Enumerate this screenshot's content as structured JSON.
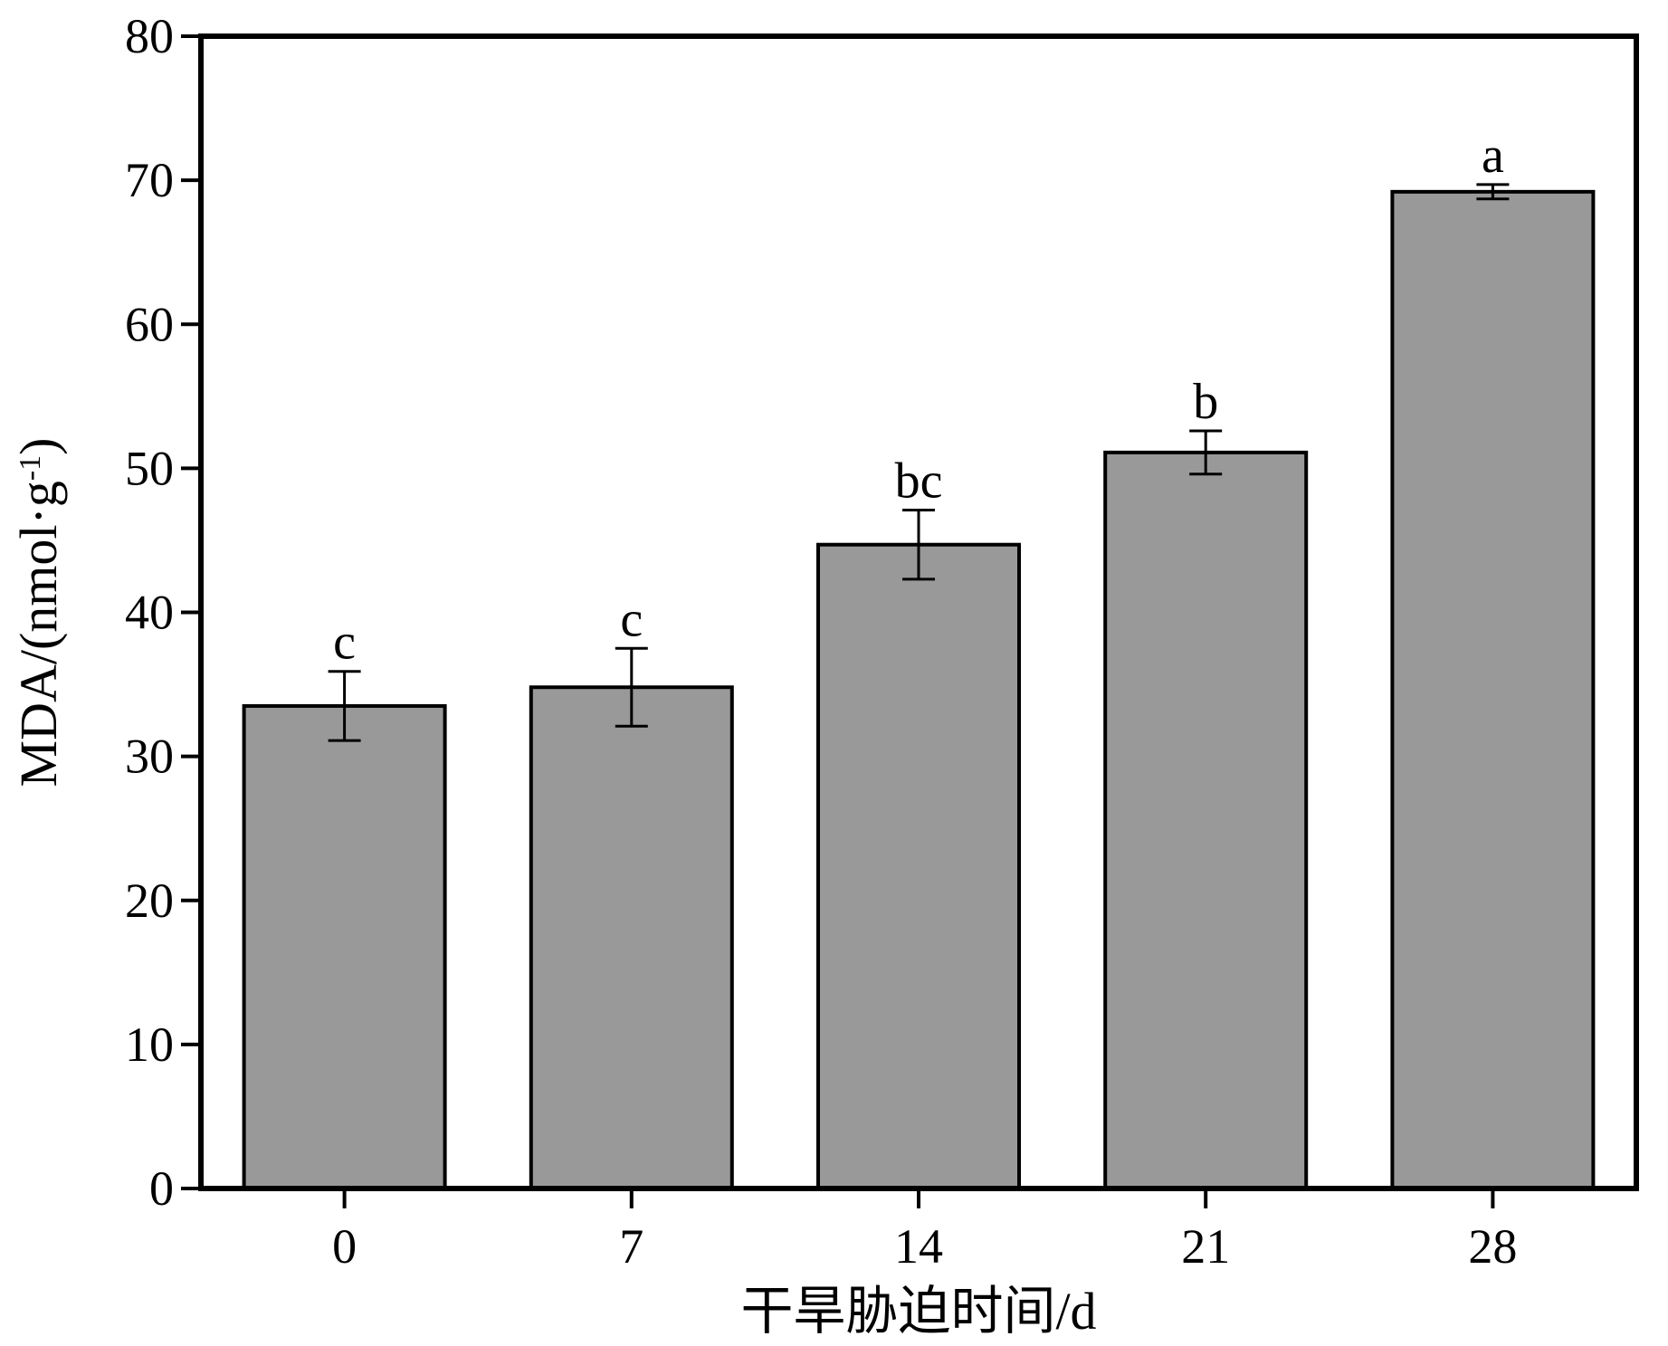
{
  "chart_data": {
    "type": "bar",
    "categories": [
      "0",
      "7",
      "14",
      "21",
      "28"
    ],
    "series": [
      {
        "values": [
          33.5,
          34.8,
          44.7,
          51.1,
          69.2
        ],
        "errors": [
          2.4,
          2.7,
          2.4,
          1.5,
          0.5
        ],
        "significance": [
          "c",
          "c",
          "bc",
          "b",
          "a"
        ]
      }
    ],
    "xlabel": "干旱胁迫时间/d",
    "ylabel": {
      "main": "MDA/(nmol·g",
      "superscript": "-1",
      "close": ")"
    },
    "ylim": [
      0,
      80
    ],
    "yticks": [
      0,
      10,
      20,
      30,
      40,
      50,
      60,
      70,
      80
    ],
    "grid": false,
    "legend": "none",
    "colors": {
      "bar_fill": "#999999",
      "bar_stroke": "#000000",
      "axis": "#000000"
    }
  }
}
